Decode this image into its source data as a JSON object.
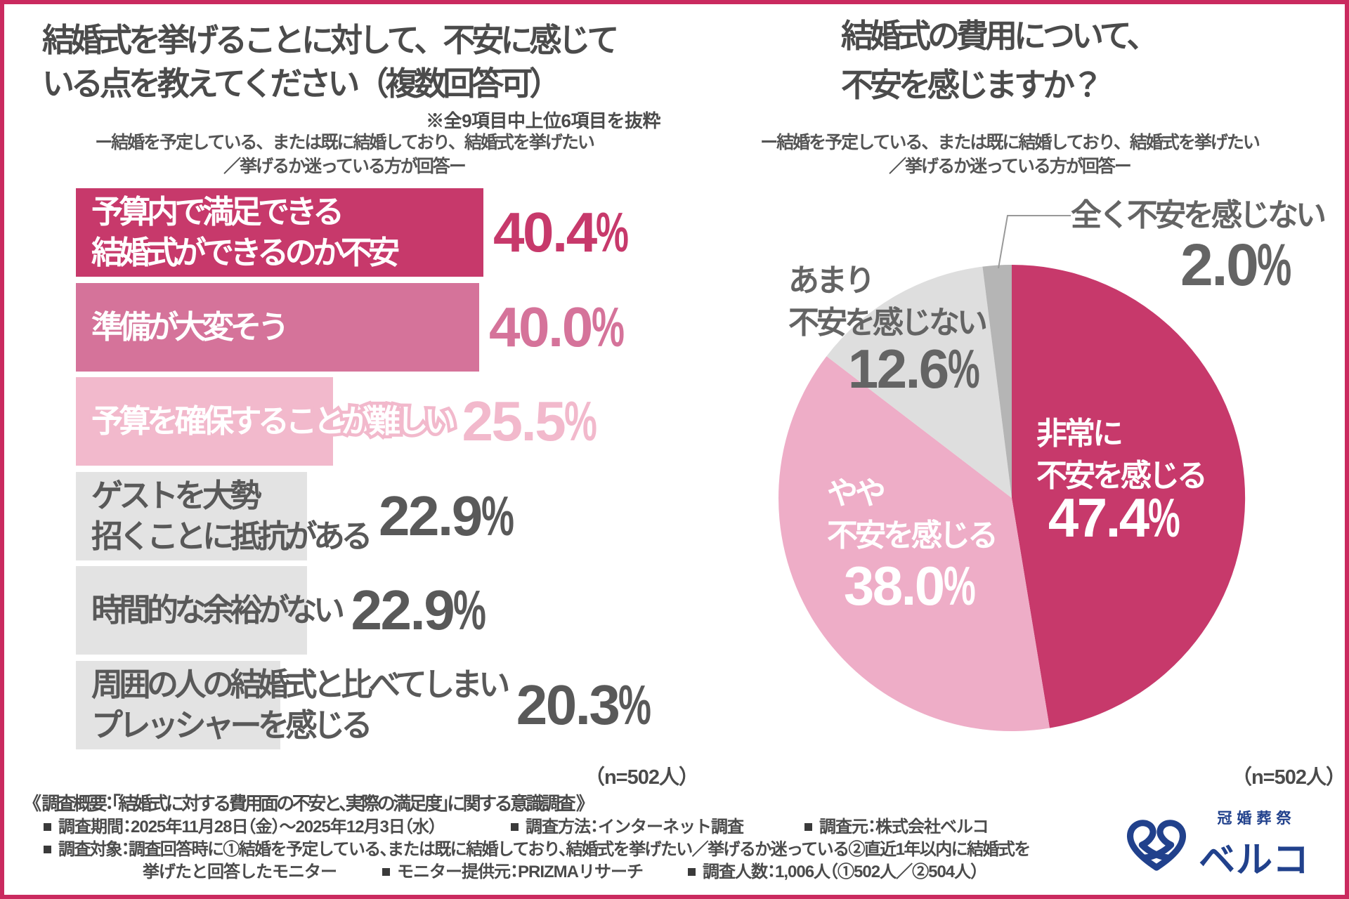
{
  "frame_color": "#ca2a5f",
  "chart_data": [
    {
      "type": "bar",
      "orientation": "horizontal",
      "title_lines": [
        "結婚式を挙げることに対して、不安に感じて",
        "いる点を教えてください（複数回答可）"
      ],
      "note": "※全9項目中上位6項目を抜粋",
      "subtitle_lines": [
        "ー結婚を予定している、または既に結婚しており、結婚式を挙げたい",
        "／挙げるか迷っている方が回答ー"
      ],
      "unit": "%",
      "xlim": [
        0,
        42
      ],
      "categories": [
        "予算内で満足できる\n結婚式ができるのか不安",
        "準備が大変そう",
        "予算を確保することが難しい",
        "ゲストを大勢\n招くことに抵抗がある",
        "時間的な余裕がない",
        "周囲の人の結婚式と比べてしまい\nプレッシャーを感じる"
      ],
      "values": [
        40.4,
        40.0,
        25.5,
        22.9,
        22.9,
        20.3
      ],
      "value_labels": [
        "40.4%",
        "40.0%",
        "25.5%",
        "22.9%",
        "22.9%",
        "20.3%"
      ],
      "bar_colors": [
        "#c7396b",
        "#d5739a",
        "#f2b9cc",
        "#e3e3e3",
        "#e3e3e3",
        "#e3e3e3"
      ],
      "label_colors": [
        "#ffffff",
        "#ffffff",
        "#ffffff",
        "#595959",
        "#595959",
        "#595959"
      ],
      "value_colors": [
        "#c7396b",
        "#d5739a",
        "#f2b9cc",
        "#595959",
        "#595959",
        "#595959"
      ],
      "outlined_label_index": 2,
      "sample_note": "（n=502人）"
    },
    {
      "type": "pie",
      "title_lines": [
        "結婚式の費用について、",
        "不安を感じますか？"
      ],
      "subtitle_lines": [
        "ー結婚を予定している、または既に結婚しており、結婚式を挙げたい",
        "／挙げるか迷っている方が回答ー"
      ],
      "start_angle_deg": 0,
      "direction": "clockwise",
      "slices": [
        {
          "label_lines": [
            "非常に",
            "不安を感じる"
          ],
          "value": 47.4,
          "value_label": "47.4%",
          "color": "#c7396b"
        },
        {
          "label_lines": [
            "やや",
            "不安を感じる"
          ],
          "value": 38.0,
          "value_label": "38.0%",
          "color": "#eeadc7"
        },
        {
          "label_lines": [
            "あまり",
            "不安を感じない"
          ],
          "value": 12.6,
          "value_label": "12.6%",
          "color": "#dedede"
        },
        {
          "label_lines": [
            "全く不安を感じない"
          ],
          "value": 2.0,
          "value_label": "2.0%",
          "color": "#b5b5b5"
        }
      ],
      "leader_line_color": "#999999",
      "sample_note": "（n=502人）"
    }
  ],
  "footer": {
    "overview": "《 調査概要：「結婚式に対する費用面の不安と、実際の満足度」に関する意識調査 》",
    "period": "調査期間：2025年11月28日（金）～2025年12月3日（水）",
    "method": "調査方法：インターネット調査",
    "source": "調査元：株式会社ベルコ",
    "target": "調査対象：調査回答時に①結婚を予定している、または既に結婚しており、結婚式を挙げたい／挙げるか迷っている②直近1年以内に結婚式を",
    "target2": "挙げたと回答したモニター",
    "monitor": "モニター提供元：PRIZMAリサーチ",
    "count": "調査人数：1,006人（①502人／②504人）"
  },
  "logo": {
    "small_text": "冠婚葬祭",
    "big_text": "ベルコ",
    "color": "#21418c"
  }
}
